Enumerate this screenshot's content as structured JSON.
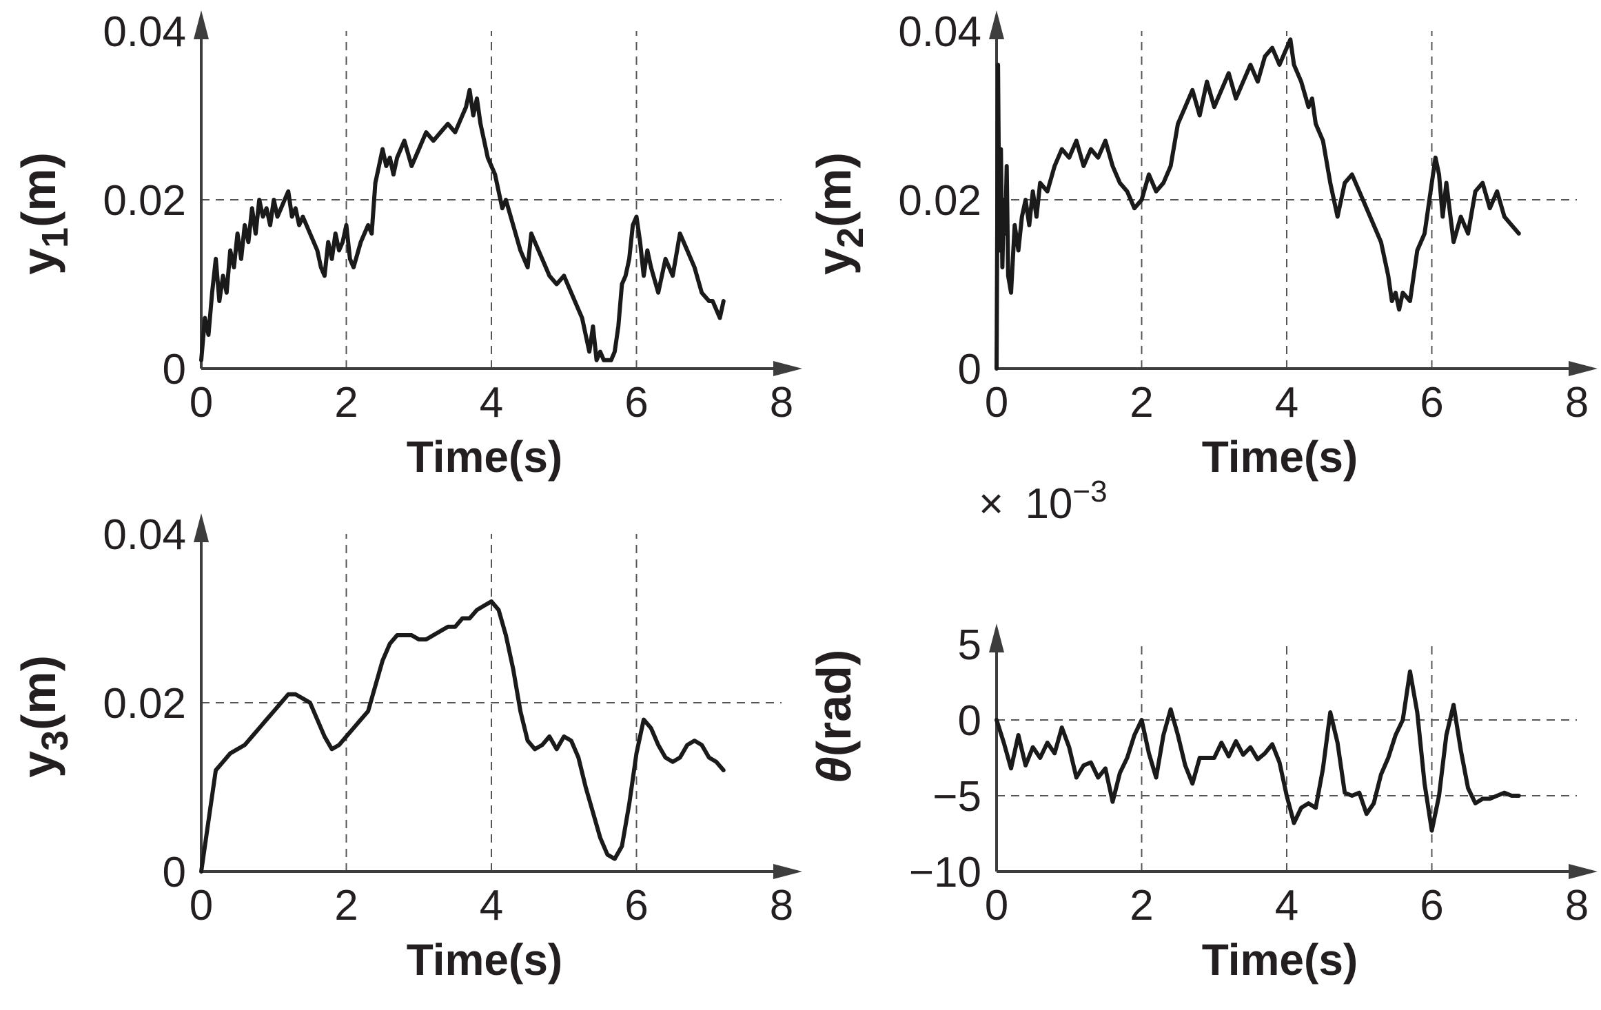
{
  "chart_data": [
    {
      "type": "line",
      "xlabel": "Time(s)",
      "ylabel": {
        "base": "y",
        "sub": "1",
        "unit": "(m)"
      },
      "xlim": [
        0,
        8
      ],
      "ylim": [
        0,
        0.04
      ],
      "xticks": [
        "0",
        "2",
        "4",
        "6",
        "8"
      ],
      "yticks": [
        "0",
        "0.02",
        "0.04"
      ],
      "grid": "dashed, at x=2,4,6 and y=0.02",
      "series": [
        {
          "x": [
            0,
            0.05,
            0.1,
            0.15,
            0.2,
            0.25,
            0.3,
            0.35,
            0.4,
            0.45,
            0.5,
            0.55,
            0.6,
            0.65,
            0.7,
            0.75,
            0.8,
            0.85,
            0.9,
            0.95,
            1.0,
            1.05,
            1.1,
            1.15,
            1.2,
            1.25,
            1.3,
            1.35,
            1.4,
            1.5,
            1.6,
            1.65,
            1.7,
            1.75,
            1.8,
            1.85,
            1.9,
            1.95,
            2.0,
            2.05,
            2.1,
            2.2,
            2.3,
            2.35,
            2.4,
            2.45,
            2.5,
            2.55,
            2.6,
            2.65,
            2.7,
            2.8,
            2.9,
            3.0,
            3.1,
            3.2,
            3.3,
            3.4,
            3.5,
            3.6,
            3.65,
            3.7,
            3.75,
            3.8,
            3.85,
            3.9,
            3.95,
            4.0,
            4.05,
            4.1,
            4.15,
            4.2,
            4.3,
            4.4,
            4.5,
            4.55,
            4.6,
            4.7,
            4.8,
            4.9,
            5.0,
            5.1,
            5.2,
            5.25,
            5.3,
            5.35,
            5.4,
            5.45,
            5.5,
            5.55,
            5.6,
            5.65,
            5.7,
            5.75,
            5.8,
            5.85,
            5.9,
            5.95,
            6.0,
            6.05,
            6.1,
            6.15,
            6.2,
            6.3,
            6.4,
            6.5,
            6.6,
            6.7,
            6.8,
            6.9,
            7.0,
            7.05,
            7.1,
            7.15,
            7.2
          ],
          "y": [
            0.001,
            0.006,
            0.004,
            0.009,
            0.013,
            0.008,
            0.011,
            0.009,
            0.014,
            0.012,
            0.016,
            0.013,
            0.017,
            0.015,
            0.019,
            0.016,
            0.02,
            0.018,
            0.019,
            0.017,
            0.02,
            0.018,
            0.019,
            0.02,
            0.021,
            0.018,
            0.019,
            0.017,
            0.018,
            0.016,
            0.014,
            0.012,
            0.011,
            0.015,
            0.013,
            0.016,
            0.014,
            0.015,
            0.017,
            0.013,
            0.012,
            0.015,
            0.017,
            0.016,
            0.022,
            0.024,
            0.026,
            0.024,
            0.025,
            0.023,
            0.025,
            0.027,
            0.024,
            0.026,
            0.028,
            0.027,
            0.028,
            0.029,
            0.028,
            0.03,
            0.031,
            0.033,
            0.03,
            0.032,
            0.029,
            0.027,
            0.025,
            0.024,
            0.023,
            0.021,
            0.019,
            0.02,
            0.017,
            0.014,
            0.012,
            0.016,
            0.015,
            0.013,
            0.011,
            0.01,
            0.011,
            0.009,
            0.007,
            0.006,
            0.004,
            0.002,
            0.005,
            0.001,
            0.002,
            0.001,
            0.001,
            0.001,
            0.002,
            0.005,
            0.01,
            0.011,
            0.013,
            0.017,
            0.018,
            0.015,
            0.011,
            0.014,
            0.012,
            0.009,
            0.013,
            0.011,
            0.016,
            0.014,
            0.012,
            0.009,
            0.008,
            0.008,
            0.007,
            0.006,
            0.008
          ]
        }
      ]
    },
    {
      "type": "line",
      "xlabel": "Time(s)",
      "ylabel": {
        "base": "y",
        "sub": "2",
        "unit": "(m)"
      },
      "xlim": [
        0,
        8
      ],
      "ylim": [
        0,
        0.04
      ],
      "xticks": [
        "0",
        "2",
        "4",
        "6",
        "8"
      ],
      "yticks": [
        "0",
        "0.02",
        "0.04"
      ],
      "grid": "dashed, at x=2,4,6 and y=0.02",
      "series": [
        {
          "x": [
            0,
            0.02,
            0.04,
            0.06,
            0.08,
            0.1,
            0.12,
            0.14,
            0.16,
            0.2,
            0.25,
            0.3,
            0.35,
            0.4,
            0.45,
            0.5,
            0.55,
            0.6,
            0.7,
            0.8,
            0.9,
            1.0,
            1.1,
            1.2,
            1.3,
            1.4,
            1.5,
            1.6,
            1.7,
            1.8,
            1.9,
            2.0,
            2.1,
            2.2,
            2.3,
            2.4,
            2.5,
            2.6,
            2.7,
            2.8,
            2.9,
            3.0,
            3.1,
            3.2,
            3.3,
            3.4,
            3.5,
            3.6,
            3.7,
            3.8,
            3.9,
            4.0,
            4.05,
            4.1,
            4.2,
            4.3,
            4.35,
            4.4,
            4.5,
            4.6,
            4.7,
            4.8,
            4.9,
            5.0,
            5.1,
            5.2,
            5.3,
            5.4,
            5.45,
            5.5,
            5.55,
            5.6,
            5.7,
            5.8,
            5.9,
            6.0,
            6.05,
            6.1,
            6.15,
            6.2,
            6.3,
            6.4,
            6.5,
            6.6,
            6.7,
            6.8,
            6.9,
            7.0,
            7.1,
            7.2
          ],
          "y": [
            0.0,
            0.036,
            0.014,
            0.026,
            0.012,
            0.02,
            0.016,
            0.024,
            0.011,
            0.009,
            0.017,
            0.014,
            0.018,
            0.02,
            0.017,
            0.021,
            0.018,
            0.022,
            0.021,
            0.024,
            0.026,
            0.025,
            0.027,
            0.024,
            0.026,
            0.025,
            0.027,
            0.024,
            0.022,
            0.021,
            0.019,
            0.02,
            0.023,
            0.021,
            0.022,
            0.024,
            0.029,
            0.031,
            0.033,
            0.03,
            0.034,
            0.031,
            0.033,
            0.035,
            0.032,
            0.034,
            0.036,
            0.034,
            0.037,
            0.038,
            0.036,
            0.038,
            0.039,
            0.036,
            0.034,
            0.031,
            0.032,
            0.029,
            0.027,
            0.022,
            0.018,
            0.022,
            0.023,
            0.021,
            0.019,
            0.017,
            0.015,
            0.011,
            0.008,
            0.009,
            0.007,
            0.009,
            0.008,
            0.014,
            0.016,
            0.022,
            0.025,
            0.023,
            0.018,
            0.022,
            0.015,
            0.018,
            0.016,
            0.021,
            0.022,
            0.019,
            0.021,
            0.018,
            0.017,
            0.016
          ]
        }
      ]
    },
    {
      "type": "line",
      "xlabel": "Time(s)",
      "ylabel": {
        "base": "y",
        "sub": "3",
        "unit": "(m)"
      },
      "xlim": [
        0,
        8
      ],
      "ylim": [
        0,
        0.04
      ],
      "xticks": [
        "0",
        "2",
        "4",
        "6",
        "8"
      ],
      "yticks": [
        "0",
        "0.02",
        "0.04"
      ],
      "grid": "dashed, at x=2,4,6 and y=0.02",
      "series": [
        {
          "x": [
            0,
            0.1,
            0.2,
            0.3,
            0.4,
            0.5,
            0.6,
            0.7,
            0.8,
            0.9,
            1.0,
            1.1,
            1.2,
            1.3,
            1.4,
            1.5,
            1.6,
            1.7,
            1.8,
            1.9,
            2.0,
            2.1,
            2.2,
            2.3,
            2.4,
            2.5,
            2.6,
            2.7,
            2.8,
            2.9,
            3.0,
            3.1,
            3.2,
            3.3,
            3.4,
            3.5,
            3.6,
            3.7,
            3.8,
            3.9,
            4.0,
            4.1,
            4.2,
            4.3,
            4.4,
            4.5,
            4.6,
            4.7,
            4.8,
            4.9,
            5.0,
            5.1,
            5.2,
            5.3,
            5.4,
            5.5,
            5.6,
            5.7,
            5.8,
            5.9,
            6.0,
            6.1,
            6.2,
            6.3,
            6.4,
            6.5,
            6.6,
            6.7,
            6.8,
            6.9,
            7.0,
            7.1,
            7.2
          ],
          "y": [
            0.0,
            0.006,
            0.012,
            0.013,
            0.014,
            0.0145,
            0.015,
            0.016,
            0.017,
            0.018,
            0.019,
            0.02,
            0.021,
            0.021,
            0.0205,
            0.02,
            0.018,
            0.016,
            0.0145,
            0.015,
            0.016,
            0.017,
            0.018,
            0.019,
            0.022,
            0.025,
            0.027,
            0.028,
            0.028,
            0.028,
            0.0275,
            0.0275,
            0.028,
            0.0285,
            0.029,
            0.029,
            0.03,
            0.03,
            0.031,
            0.0315,
            0.032,
            0.031,
            0.028,
            0.024,
            0.019,
            0.0155,
            0.0145,
            0.015,
            0.016,
            0.0145,
            0.016,
            0.0155,
            0.0135,
            0.01,
            0.007,
            0.004,
            0.002,
            0.0015,
            0.003,
            0.008,
            0.014,
            0.018,
            0.017,
            0.015,
            0.0135,
            0.013,
            0.0135,
            0.015,
            0.0155,
            0.015,
            0.0135,
            0.013,
            0.012
          ]
        }
      ]
    },
    {
      "type": "line",
      "xlabel": "Time(s)",
      "ylabel": {
        "base": "θ",
        "sub": "",
        "unit": "(rad)"
      },
      "scale_label": {
        "mult": "×",
        "base": "10",
        "exp": "−3"
      },
      "xlim": [
        0,
        8
      ],
      "ylim": [
        -10,
        5
      ],
      "xticks": [
        "0",
        "2",
        "4",
        "6",
        "8"
      ],
      "yticks": [
        "−10",
        "−5",
        "0",
        "5"
      ],
      "grid": "dashed, at x=2,4,6 and y=0,-5",
      "series": [
        {
          "x": [
            0,
            0.1,
            0.2,
            0.3,
            0.4,
            0.5,
            0.6,
            0.7,
            0.8,
            0.9,
            1.0,
            1.1,
            1.2,
            1.3,
            1.4,
            1.5,
            1.6,
            1.7,
            1.8,
            1.9,
            2.0,
            2.1,
            2.2,
            2.3,
            2.4,
            2.5,
            2.6,
            2.7,
            2.8,
            2.9,
            3.0,
            3.1,
            3.2,
            3.3,
            3.4,
            3.5,
            3.6,
            3.7,
            3.8,
            3.9,
            4.0,
            4.1,
            4.2,
            4.3,
            4.4,
            4.5,
            4.6,
            4.7,
            4.8,
            4.9,
            5.0,
            5.1,
            5.2,
            5.3,
            5.4,
            5.5,
            5.6,
            5.7,
            5.8,
            5.9,
            6.0,
            6.1,
            6.2,
            6.3,
            6.4,
            6.5,
            6.6,
            6.7,
            6.8,
            6.9,
            7.0,
            7.1,
            7.2
          ],
          "y": [
            0.0,
            -1.5,
            -3.2,
            -1.0,
            -3.0,
            -1.8,
            -2.5,
            -1.5,
            -2.2,
            -0.5,
            -1.8,
            -3.8,
            -3.0,
            -2.8,
            -3.8,
            -3.2,
            -5.4,
            -3.5,
            -2.5,
            -1.0,
            0.0,
            -2.2,
            -3.8,
            -1.0,
            0.7,
            -1.0,
            -3.0,
            -4.2,
            -2.5,
            -2.5,
            -2.5,
            -1.5,
            -2.4,
            -1.4,
            -2.3,
            -1.8,
            -2.6,
            -2.2,
            -1.6,
            -2.8,
            -5.0,
            -6.8,
            -5.8,
            -5.5,
            -5.8,
            -3.2,
            0.5,
            -1.5,
            -4.8,
            -5.0,
            -4.8,
            -6.2,
            -5.5,
            -3.6,
            -2.5,
            -1.0,
            0.0,
            3.2,
            0.5,
            -4.2,
            -7.3,
            -5.0,
            -1.0,
            1.0,
            -2.0,
            -4.5,
            -5.5,
            -5.2,
            -5.2,
            -5.0,
            -4.8,
            -5.0,
            -5.0
          ]
        }
      ]
    }
  ]
}
